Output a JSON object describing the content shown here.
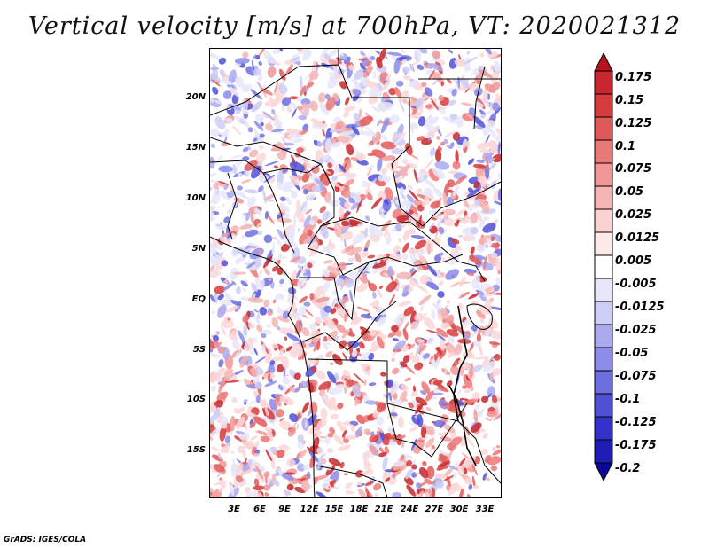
{
  "title": "Vertical velocity [m/s] at 700hPa, VT: 2020021312",
  "map": {
    "lat_labels": [
      "20N",
      "15N",
      "10N",
      "5N",
      "EQ",
      "5S",
      "10S",
      "15S"
    ],
    "lon_labels": [
      "3E",
      "6E",
      "9E",
      "12E",
      "15E",
      "18E",
      "21E",
      "24E",
      "27E",
      "30E",
      "33E"
    ]
  },
  "colorbar": {
    "labels": [
      "0.175",
      "0.15",
      "0.125",
      "0.1",
      "0.075",
      "0.05",
      "0.025",
      "0.0125",
      "0.005",
      "-0.005",
      "-0.0125",
      "-0.025",
      "-0.05",
      "-0.075",
      "-0.1",
      "-0.125",
      "-0.175",
      "-0.2"
    ],
    "colors": [
      "#b4141e",
      "#c8282d",
      "#d73c3c",
      "#e15a5a",
      "#eb7878",
      "#f09696",
      "#f5b4b4",
      "#fad2d2",
      "#fdeaea",
      "#ffffff",
      "#e6e6fa",
      "#cdcdf5",
      "#aaaaf0",
      "#8c8ceb",
      "#6e6ee1",
      "#5050d7",
      "#3232c8",
      "#1e1eb4",
      "#0a0a96"
    ]
  },
  "credit": "GrADS: IGES/COLA"
}
